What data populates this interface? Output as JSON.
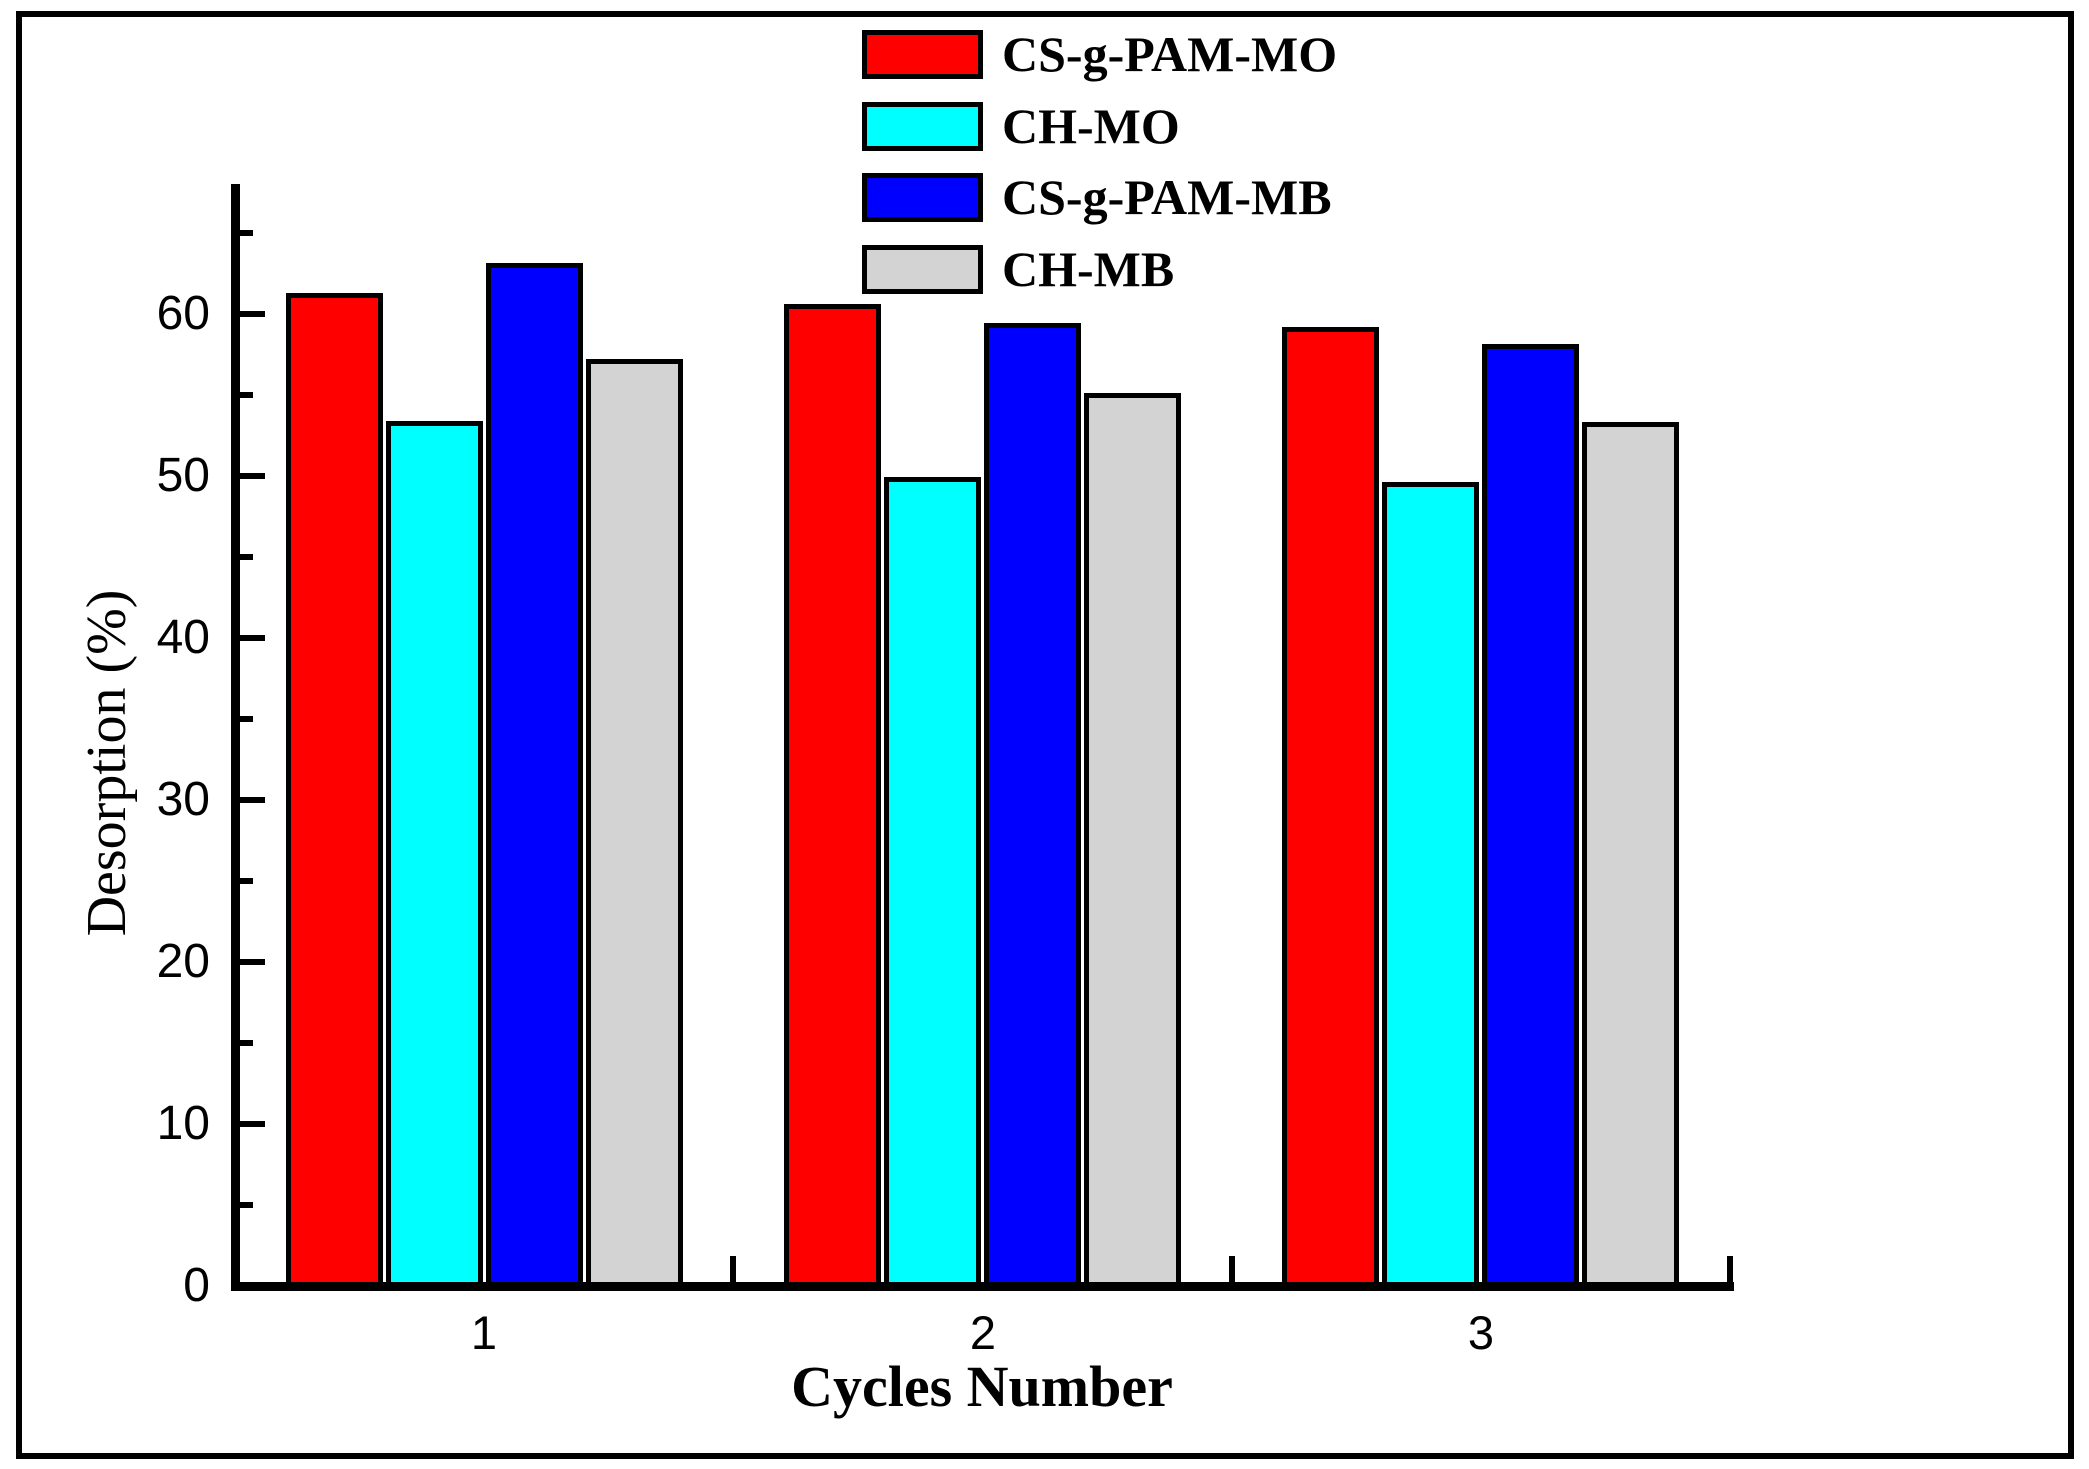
{
  "figure": {
    "background": "#ffffff",
    "frame_color": "#000000"
  },
  "chart_data": {
    "type": "bar",
    "title": "",
    "xlabel": "Cycles Number",
    "ylabel": "Desorption (%)",
    "categories": [
      "1",
      "2",
      "3"
    ],
    "series": [
      {
        "name": "CS-g-PAM-MO",
        "color": "#ff0000",
        "values": [
          61.3,
          60.6,
          59.2
        ]
      },
      {
        "name": "CH-MO",
        "color": "#00ffff",
        "values": [
          53.4,
          49.9,
          49.6
        ]
      },
      {
        "name": "CS-g-PAM-MB",
        "color": "#0000ff",
        "values": [
          63.1,
          59.4,
          58.1
        ]
      },
      {
        "name": "CH-MB",
        "color": "#d3d3d3",
        "values": [
          57.2,
          55.1,
          53.3
        ]
      }
    ],
    "ylim": [
      0,
      68
    ],
    "ytick_major": [
      0,
      10,
      20,
      30,
      40,
      50,
      60
    ],
    "ytick_minor_step": 5,
    "xtick_labels": [
      "1",
      "2",
      "3"
    ],
    "grid": false,
    "legend_position": "top-center-inside",
    "legend_entries": [
      "CS-g-PAM-MO",
      "CH-MO",
      "CS-g-PAM-MB",
      "CH-MB"
    ],
    "bar_border_color": "#000000",
    "axis_color": "#000000"
  }
}
